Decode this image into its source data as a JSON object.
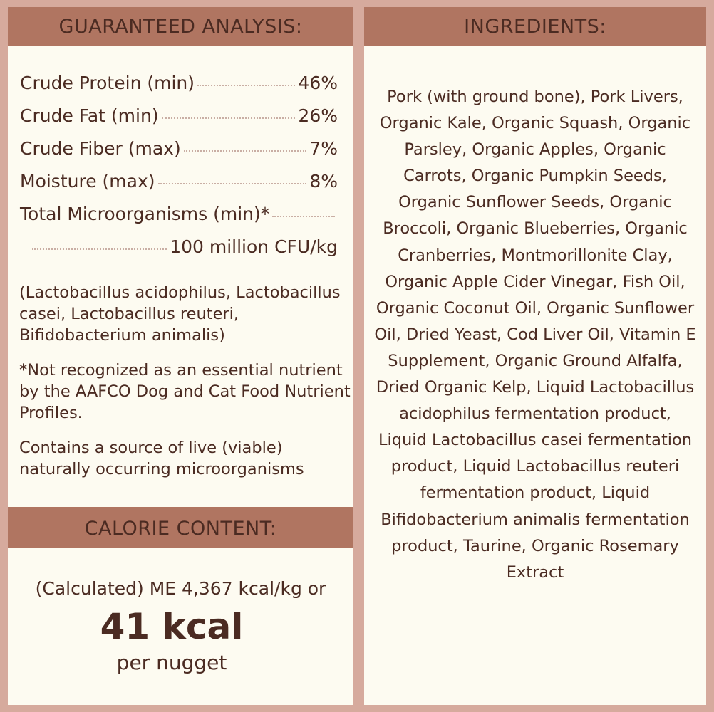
{
  "guaranteed_analysis": {
    "title": "GUARANTEED ANALYSIS:",
    "rows": [
      {
        "label": "Crude Protein (min)",
        "value": "46%"
      },
      {
        "label": "Crude Fat (min)",
        "value": "26%"
      },
      {
        "label": "Crude Fiber (max)",
        "value": "7%"
      },
      {
        "label": "Moisture (max)",
        "value": "8%"
      },
      {
        "label": "Total Microorganisms (min)*",
        "value": "100 million CFU/kg"
      }
    ],
    "strains": "(Lactobacillus acidophilus, Lactobacillus casei, Lactobacillus reuteri, Bifidobacterium animalis)",
    "footnote": "*Not recognized as an essential nutrient by the AAFCO Dog and Cat Food Nutrient Profiles.",
    "live_note": "Contains a source of live (viable) naturally occurring microorganisms"
  },
  "calorie_content": {
    "title": "CALORIE CONTENT:",
    "calculated": "(Calculated) ME 4,367 kcal/kg or",
    "big": "41 kcal",
    "unit": "per nugget"
  },
  "ingredients": {
    "title": "INGREDIENTS:",
    "text": "Pork (with ground bone), Pork Livers, Organic Kale, Organic Squash, Organic Parsley, Organic Apples, Organic Carrots, Organic Pumpkin Seeds, Organic Sunflower Seeds, Organic Broccoli, Organic Blueberries, Organic Cranberries, Montmorillonite Clay, Organic Apple Cider Vinegar, Fish Oil, Organic Coconut Oil, Organic Sunflower Oil, Dried Yeast, Cod Liver Oil, Vitamin E Supplement, Organic Ground Alfalfa, Dried Organic Kelp, Liquid Lactobacillus acidophilus fermentation product, Liquid Lactobacillus casei fermentation product, Liquid Lactobacillus reuteri fermentation product, Liquid Bifidobacterium animalis fermentation product, Taurine, Organic Rosemary Extract"
  },
  "colors": {
    "border": "#d6aa9d",
    "header": "#b07561",
    "text": "#4b2b22",
    "background": "#fdfbf1"
  }
}
